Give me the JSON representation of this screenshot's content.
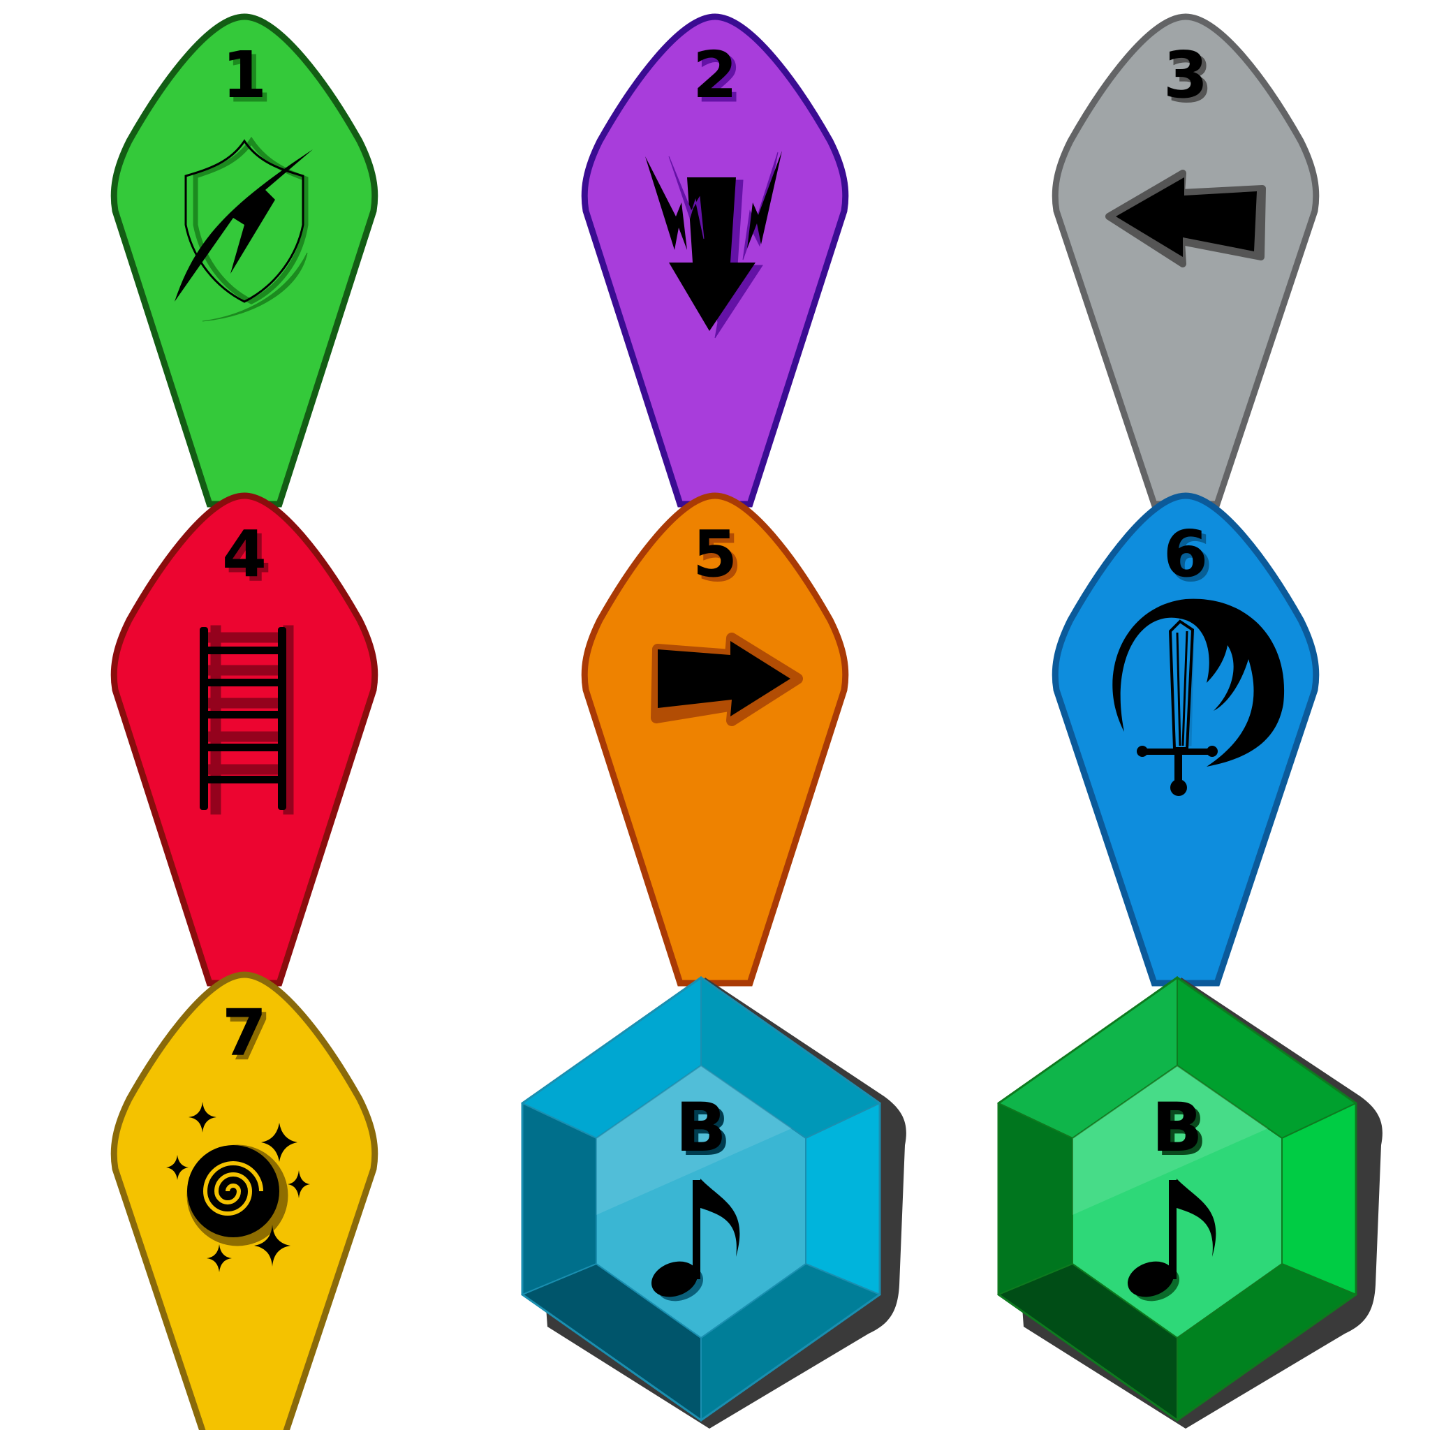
{
  "tokens": [
    {
      "number": "1",
      "icon": "broken-shield-icon",
      "fill": "#34c93a",
      "stroke": "#135d14",
      "shade": "#1c8a1f"
    },
    {
      "number": "2",
      "icon": "lightning-down-arrow-icon",
      "fill": "#a83ddb",
      "stroke": "#3a0c92",
      "shade": "#6412a6"
    },
    {
      "number": "3",
      "icon": "left-arrow-icon",
      "fill": "#a0a5a7",
      "stroke": "#636466",
      "shade": "#555555"
    },
    {
      "number": "4",
      "icon": "ladder-icon",
      "fill": "#ec0530",
      "stroke": "#8a0d0d",
      "shade": "#94021d"
    },
    {
      "number": "5",
      "icon": "right-arrow-icon",
      "fill": "#ee8200",
      "stroke": "#a93a05",
      "shade": "#b24d04"
    },
    {
      "number": "6",
      "icon": "sword-crescent-icon",
      "fill": "#0e8ddd",
      "stroke": "#0b5a9a",
      "shade": "#075f96"
    },
    {
      "number": "7",
      "icon": "swirl-stars-icon",
      "fill": "#f4c200",
      "stroke": "#8a6a0a",
      "shade": "#8e6d00"
    }
  ],
  "gems": [
    {
      "label": "B",
      "icon": "music-note-icon",
      "center": "#3ab6d3",
      "top": "#00a7d1",
      "upper_right": "#0098b8",
      "right": "#00b4dc",
      "bottom_right": "#007e98",
      "bottom": "#00556b",
      "bottom_left": "#004a60",
      "left": "#006f8b",
      "upper_left": "#00849f",
      "edge": "#1a8fb0",
      "note_shade": "#0a5f7a"
    },
    {
      "label": "B",
      "icon": "music-note-icon",
      "center": "#2ed878",
      "top": "#0fb54a",
      "upper_right": "#00a02e",
      "right": "#00cc44",
      "bottom_right": "#00821f",
      "bottom": "#004d16",
      "bottom_left": "#004414",
      "left": "#00761e",
      "upper_left": "#00902a",
      "edge": "#0e7a1f",
      "note_shade": "#0a6b2a"
    }
  ]
}
